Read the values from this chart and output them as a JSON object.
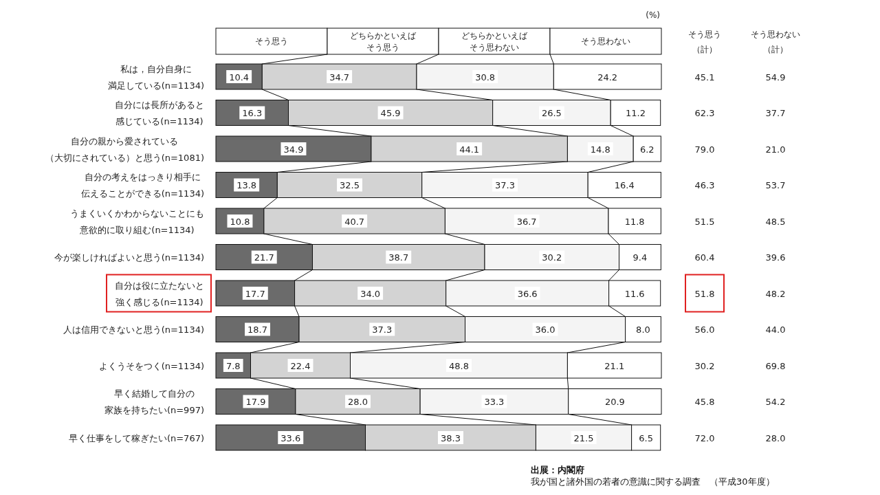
{
  "chart_data": [
    {
      "type": "bar",
      "orientation": "horizontal",
      "stacked": true,
      "tick_labels": "y",
      "legend": "top",
      "categories": [
        "私は，自分自身に満足している(n=1134)",
        "自分には長所があると感じている(n=1134)",
        "自分の親から愛されている（大切にされている）と思う(n=1081)",
        "自分の考えをはっきり相手に伝えることができる(n=1134)",
        "うまくいくかわからないことにも意欲的に取り組む(n=1134)",
        "今が楽しければよいと思う(n=1134)",
        "自分は役に立たないと強く感じる(n=1134)",
        "人は信用できないと思う(n=1134)",
        "よくうそをつく(n=1134)",
        "早く結婚して自分の家族を持ちたい(n=997)",
        "早く仕事をして稼ぎたい(n=767)"
      ],
      "series": [
        {
          "name": "そう思う",
          "color": "#6b6b6b",
          "values": [
            10.4,
            16.3,
            34.9,
            13.8,
            10.8,
            21.7,
            17.7,
            18.7,
            7.8,
            17.9,
            33.6
          ],
          "value_labels": [
            "10.4",
            "16.3",
            "34.9",
            "13.8",
            "10.8",
            "21.7",
            "17.7",
            "18.7",
            "7.8",
            "17.9",
            "33.6"
          ]
        },
        {
          "name": "どちらかといえばそう思う",
          "color": "#d3d3d3",
          "values": [
            34.7,
            45.9,
            44.1,
            32.5,
            40.7,
            38.7,
            34.0,
            37.3,
            22.4,
            28.0,
            38.3
          ],
          "value_labels": [
            "34.7",
            "45.9",
            "44.1",
            "32.5",
            "40.7",
            "38.7",
            "34.0",
            "37.3",
            "22.4",
            "28.0",
            "38.3"
          ]
        },
        {
          "name": "どちらかといえばそう思わない",
          "color": "#f4f4f4",
          "values": [
            30.8,
            26.5,
            14.8,
            37.3,
            36.7,
            30.2,
            36.6,
            36.0,
            48.8,
            33.3,
            21.5
          ],
          "value_labels": [
            "30.8",
            "26.5",
            "14.8",
            "37.3",
            "36.7",
            "30.2",
            "36.6",
            "36.0",
            "48.8",
            "33.3",
            "21.5"
          ]
        },
        {
          "name": "そう思わない",
          "color": "#ffffff",
          "values": [
            24.2,
            11.2,
            6.2,
            16.4,
            11.8,
            9.4,
            11.6,
            8.0,
            21.1,
            20.9,
            6.5
          ],
          "value_labels": [
            "24.2",
            "11.2",
            "6.2",
            "16.4",
            "11.8",
            "9.4",
            "11.6",
            "8.0",
            "21.1",
            "20.9",
            "6.5"
          ]
        }
      ],
      "annotations": [
        "(%)",
        "出展：内閣府",
        "我が国と諸外国の若者の意識に関する調査　（平成30年度）"
      ]
    },
    {
      "type": "other",
      "categories": [
        "そう思う（計）",
        "そう思わない（計）"
      ],
      "cell_labels": [
        [
          "45.1",
          "54.9"
        ],
        [
          "62.3",
          "37.7"
        ],
        [
          "79.0",
          "21.0"
        ],
        [
          "46.3",
          "53.7"
        ],
        [
          "51.5",
          "48.5"
        ],
        [
          "60.4",
          "39.6"
        ],
        [
          "51.8",
          "48.2"
        ],
        [
          "56.0",
          "44.0"
        ],
        [
          "30.2",
          "69.8"
        ],
        [
          "45.8",
          "54.2"
        ],
        [
          "72.0",
          "28.0"
        ]
      ]
    }
  ]
}
